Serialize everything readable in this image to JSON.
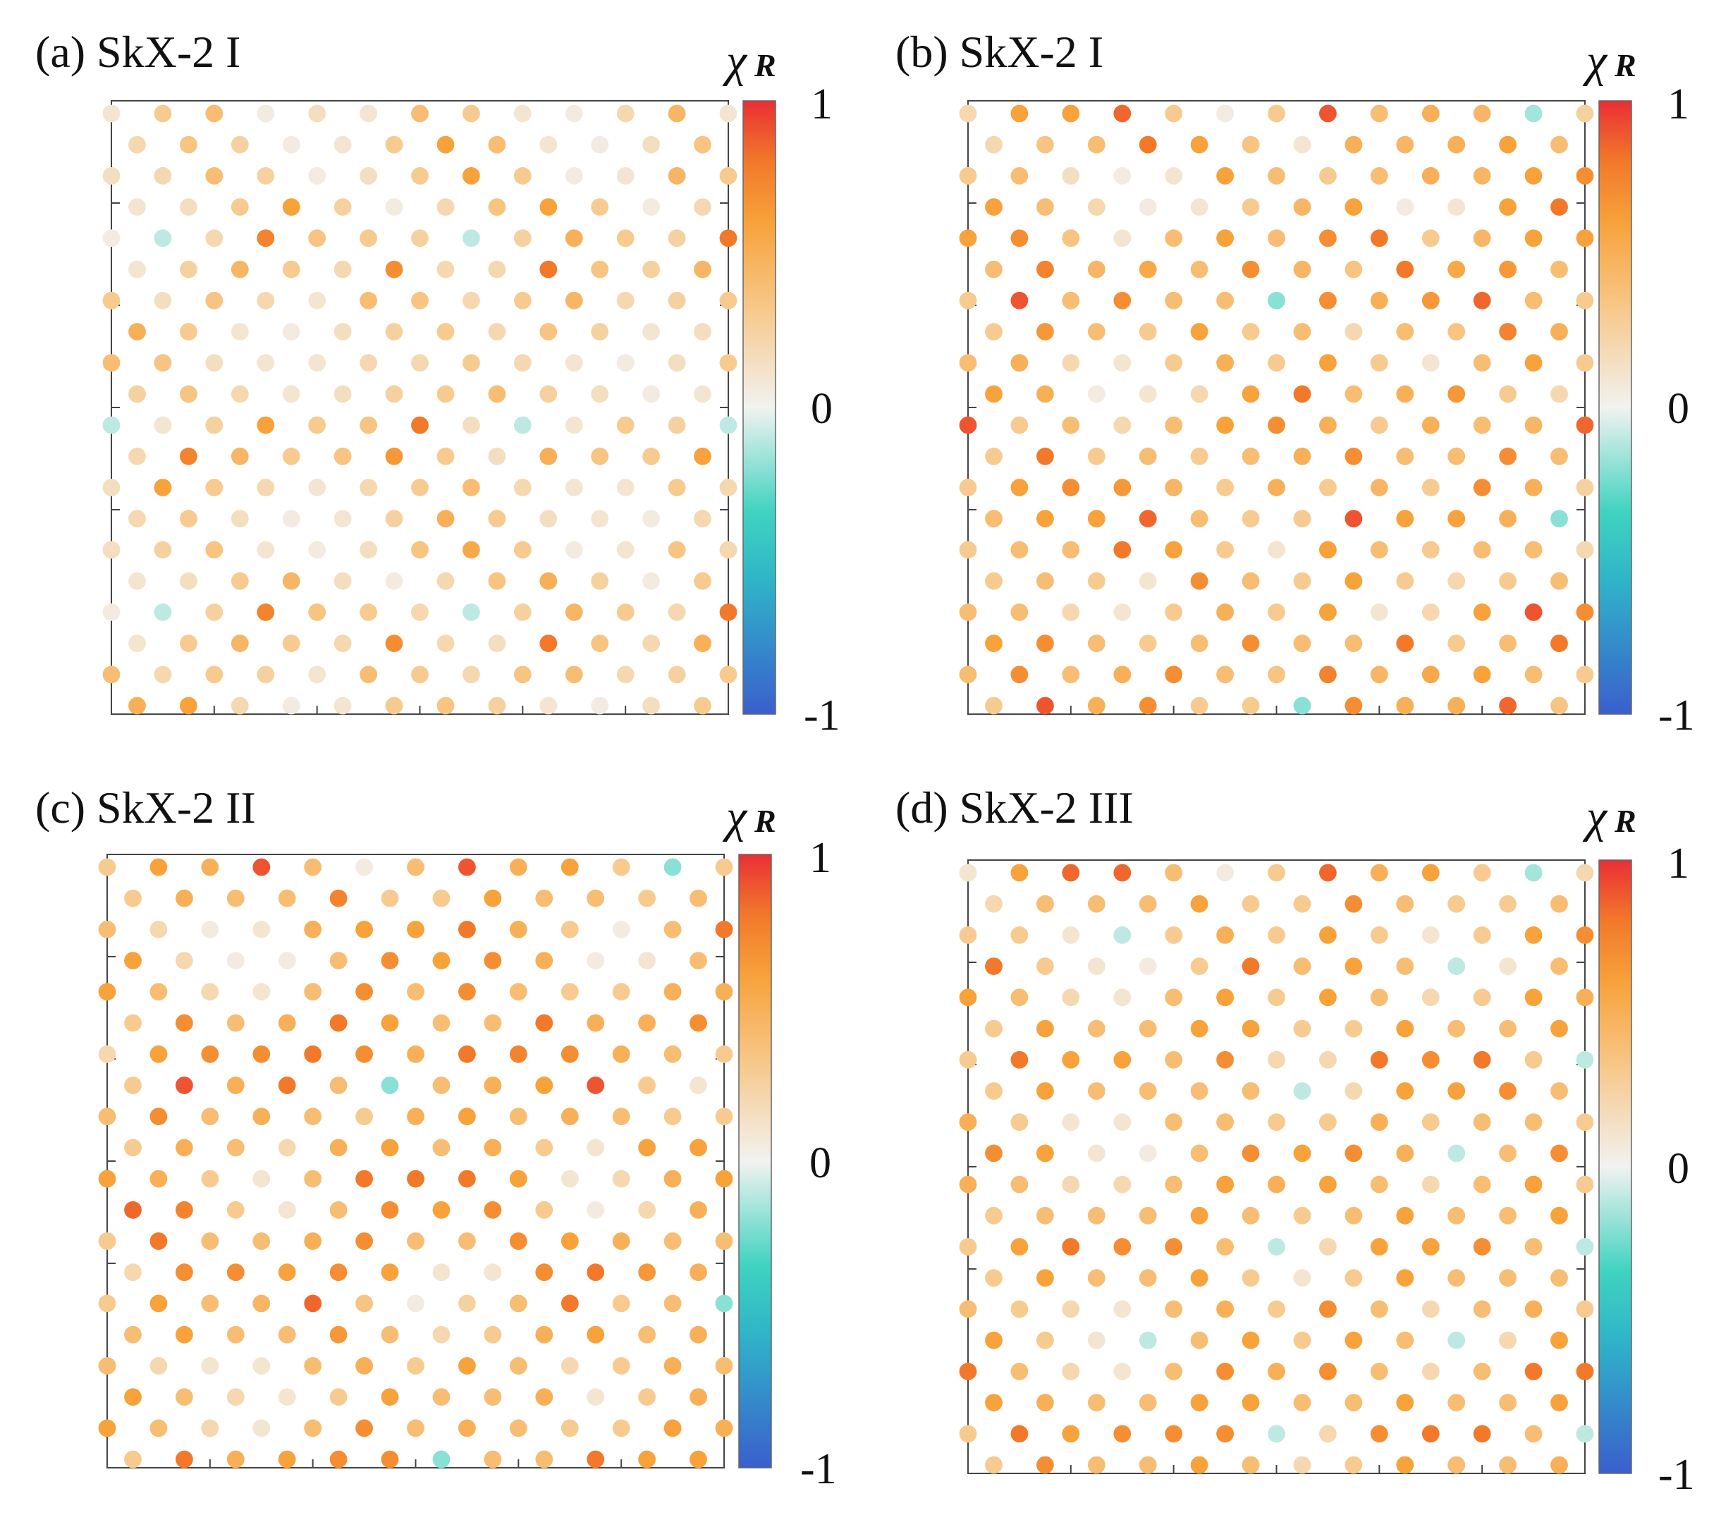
{
  "chart_data": [
    {
      "type": "scatter",
      "title": "(a) SkX-2 I",
      "colorbar": {
        "label": "χ",
        "label_sub": "R",
        "ticks": [
          "1",
          "0",
          "-1"
        ],
        "range": [
          -1,
          1
        ]
      },
      "grid": "13 columns x 20 rows, alternate rows offset by half a column",
      "rows": [
        [
          0.1,
          0.3,
          0.4,
          0.05,
          0.15,
          0.1,
          0.4,
          0.3,
          0.1,
          0.05,
          0.2,
          0.45,
          0.1
        ],
        [
          0.2,
          0.35,
          0.25,
          0.05,
          0.1,
          0.3,
          0.6,
          0.4,
          0.1,
          0.05,
          0.15,
          0.35,
          0.3
        ],
        [
          0.15,
          0.2,
          0.4,
          0.25,
          0.05,
          0.15,
          0.3,
          0.6,
          0.3,
          0.05,
          0.1,
          0.45,
          0.3
        ],
        [
          0.1,
          0.15,
          0.3,
          0.6,
          0.25,
          0.05,
          0.2,
          0.35,
          0.6,
          0.3,
          0.05,
          0.2,
          0.65
        ],
        [
          0.05,
          -0.1,
          0.2,
          0.75,
          0.35,
          0.3,
          0.25,
          -0.1,
          0.25,
          0.5,
          0.3,
          0.25,
          0.8
        ],
        [
          0.1,
          0.25,
          0.45,
          0.3,
          0.2,
          0.7,
          0.2,
          0.2,
          0.8,
          0.35,
          0.25,
          0.45,
          0.15
        ],
        [
          0.3,
          0.15,
          0.35,
          0.2,
          0.1,
          0.4,
          0.35,
          0.2,
          0.3,
          0.45,
          0.2,
          0.25,
          0.3
        ],
        [
          0.5,
          0.3,
          0.1,
          0.05,
          0.15,
          0.25,
          0.3,
          0.2,
          0.35,
          0.25,
          0.1,
          0.15,
          0.5
        ],
        [
          0.4,
          0.35,
          0.15,
          0.1,
          0.1,
          0.2,
          0.2,
          0.3,
          0.2,
          0.1,
          0.05,
          0.15,
          0.3
        ],
        [
          0.25,
          0.35,
          0.2,
          0.1,
          0.15,
          0.25,
          0.3,
          0.4,
          0.25,
          0.15,
          0.05,
          0.1,
          0.2
        ],
        [
          -0.1,
          0.1,
          0.25,
          0.6,
          0.3,
          0.35,
          0.8,
          0.15,
          -0.1,
          0.1,
          0.3,
          0.25,
          -0.1
        ],
        [
          0.2,
          0.75,
          0.45,
          0.3,
          0.35,
          0.65,
          0.3,
          0.15,
          0.5,
          0.35,
          0.3,
          0.6,
          0.2
        ],
        [
          0.15,
          0.6,
          0.3,
          0.2,
          0.1,
          0.2,
          0.3,
          0.4,
          0.2,
          0.1,
          0.1,
          0.3,
          0.2
        ],
        [
          0.2,
          0.3,
          0.15,
          0.05,
          0.1,
          0.25,
          0.5,
          0.3,
          0.15,
          0.1,
          0.05,
          0.2,
          0.25
        ],
        [
          0.15,
          0.25,
          0.35,
          0.1,
          0.05,
          0.15,
          0.35,
          0.55,
          0.3,
          0.05,
          0.1,
          0.35,
          0.2
        ],
        [
          0.1,
          0.15,
          0.3,
          0.45,
          0.15,
          0.05,
          0.2,
          0.35,
          0.5,
          0.25,
          0.05,
          0.3,
          0.5
        ],
        [
          0.05,
          -0.1,
          0.25,
          0.75,
          0.35,
          0.3,
          0.2,
          -0.1,
          0.25,
          0.45,
          0.3,
          0.2,
          0.8
        ],
        [
          0.1,
          0.3,
          0.45,
          0.3,
          0.2,
          0.7,
          0.2,
          0.15,
          0.8,
          0.35,
          0.2,
          0.5,
          0.15
        ],
        [
          0.4,
          0.2,
          0.3,
          0.25,
          0.1,
          0.4,
          0.3,
          0.2,
          0.35,
          0.4,
          0.2,
          0.25,
          0.3
        ],
        [
          0.5,
          0.6,
          0.2,
          0.05,
          0.1,
          0.3,
          0.35,
          0.25,
          0.1,
          0.05,
          0.15,
          0.3,
          0.45
        ]
      ]
    },
    {
      "type": "scatter",
      "title": "(b) SkX-2 I",
      "colorbar": {
        "label": "χ",
        "label_sub": "R",
        "ticks": [
          "1",
          "0",
          "-1"
        ],
        "range": [
          -1,
          1
        ]
      },
      "grid": "13 columns x 20 rows, alternate rows offset by half a column",
      "rows": [
        [
          0.2,
          0.6,
          0.6,
          0.85,
          0.3,
          0.05,
          0.3,
          0.9,
          0.4,
          0.5,
          0.45,
          -0.15,
          0.25
        ],
        [
          0.2,
          0.35,
          0.4,
          0.8,
          0.6,
          0.35,
          0.1,
          0.5,
          0.45,
          0.5,
          0.6,
          0.4,
          0.3
        ],
        [
          0.3,
          0.4,
          0.15,
          0.05,
          0.1,
          0.6,
          0.4,
          0.3,
          0.4,
          0.5,
          0.45,
          0.6,
          0.7
        ],
        [
          0.6,
          0.4,
          0.2,
          0.05,
          0.1,
          0.3,
          0.45,
          0.6,
          0.05,
          0.1,
          0.6,
          0.8,
          0.65
        ],
        [
          0.6,
          0.7,
          0.35,
          0.1,
          0.4,
          0.6,
          0.4,
          0.7,
          0.8,
          0.3,
          0.45,
          0.6,
          0.6
        ],
        [
          0.4,
          0.75,
          0.45,
          0.55,
          0.4,
          0.7,
          0.45,
          0.35,
          0.8,
          0.55,
          0.65,
          0.4,
          0.3
        ],
        [
          0.3,
          0.9,
          0.4,
          0.7,
          0.4,
          0.4,
          -0.2,
          0.7,
          0.5,
          0.65,
          0.85,
          0.4,
          0.3
        ],
        [
          0.3,
          0.65,
          0.4,
          0.3,
          0.6,
          0.3,
          0.4,
          0.2,
          0.4,
          0.35,
          0.75,
          0.5,
          0.3
        ],
        [
          0.4,
          0.5,
          0.2,
          0.1,
          0.3,
          0.5,
          0.3,
          0.6,
          0.3,
          0.1,
          0.4,
          0.6,
          0.3
        ],
        [
          0.6,
          0.5,
          0.05,
          0.1,
          0.2,
          0.6,
          0.8,
          0.4,
          0.5,
          0.65,
          0.3,
          0.2,
          0.6
        ],
        [
          0.9,
          0.3,
          0.4,
          0.2,
          0.4,
          0.6,
          0.7,
          0.5,
          0.3,
          0.5,
          0.4,
          0.45,
          0.85
        ],
        [
          0.3,
          0.8,
          0.3,
          0.4,
          0.3,
          0.4,
          0.5,
          0.7,
          0.4,
          0.4,
          0.7,
          0.4,
          0.2
        ],
        [
          0.3,
          0.6,
          0.7,
          0.65,
          0.45,
          0.3,
          0.5,
          0.3,
          0.45,
          0.3,
          0.7,
          0.5,
          0.25
        ],
        [
          0.4,
          0.6,
          0.6,
          0.85,
          0.4,
          0.3,
          0.3,
          0.9,
          0.6,
          0.6,
          0.5,
          -0.2,
          0.3
        ],
        [
          0.3,
          0.4,
          0.4,
          0.8,
          0.6,
          0.3,
          0.1,
          0.6,
          0.4,
          0.3,
          0.4,
          0.4,
          0.2
        ],
        [
          0.3,
          0.4,
          0.3,
          0.1,
          0.7,
          0.4,
          0.3,
          0.6,
          0.3,
          0.2,
          0.3,
          0.4,
          0.3
        ],
        [
          0.4,
          0.4,
          0.2,
          0.1,
          0.3,
          0.5,
          0.3,
          0.6,
          0.1,
          0.2,
          0.6,
          0.9,
          0.7
        ],
        [
          0.6,
          0.7,
          0.4,
          0.3,
          0.4,
          0.7,
          0.4,
          0.4,
          0.8,
          0.3,
          0.4,
          0.8,
          0.6
        ],
        [
          0.4,
          0.7,
          0.4,
          0.5,
          0.7,
          0.4,
          0.35,
          0.75,
          0.45,
          0.55,
          0.6,
          0.4,
          0.3
        ],
        [
          0.3,
          0.9,
          0.5,
          0.7,
          0.3,
          0.3,
          -0.2,
          0.7,
          0.5,
          0.5,
          0.85,
          0.35,
          0.3
        ]
      ]
    },
    {
      "type": "scatter",
      "title": "(c) SkX-2 II",
      "colorbar": {
        "label": "χ",
        "label_sub": "R",
        "ticks": [
          "1",
          "0",
          "-1"
        ],
        "range": [
          -1,
          1
        ]
      },
      "grid": "13 columns x 20 rows, alternate rows offset by half a column",
      "rows": [
        [
          0.3,
          0.6,
          0.5,
          0.9,
          0.4,
          0.05,
          0.4,
          0.9,
          0.5,
          0.6,
          0.3,
          -0.2,
          0.3
        ],
        [
          0.3,
          0.5,
          0.4,
          0.4,
          0.75,
          0.3,
          0.3,
          0.6,
          0.4,
          0.4,
          0.3,
          0.4,
          0.3
        ],
        [
          0.4,
          0.2,
          0.05,
          0.1,
          0.5,
          0.6,
          0.6,
          0.8,
          0.5,
          0.3,
          0.05,
          0.4,
          0.8
        ],
        [
          0.6,
          0.2,
          0.05,
          0.05,
          0.4,
          0.7,
          0.6,
          0.7,
          0.5,
          0.05,
          0.1,
          0.4,
          0.85
        ],
        [
          0.6,
          0.4,
          0.2,
          0.1,
          0.4,
          0.7,
          0.4,
          0.7,
          0.4,
          0.3,
          0.3,
          0.5,
          0.5
        ],
        [
          0.3,
          0.7,
          0.4,
          0.5,
          0.8,
          0.6,
          0.4,
          0.4,
          0.8,
          0.5,
          0.5,
          0.7,
          0.3
        ],
        [
          0.2,
          0.6,
          0.7,
          0.7,
          0.8,
          0.7,
          0.5,
          0.8,
          0.75,
          0.7,
          0.5,
          0.4,
          0.3
        ],
        [
          0.3,
          0.9,
          0.5,
          0.8,
          0.4,
          -0.2,
          0.4,
          0.5,
          0.6,
          0.9,
          0.3,
          0.1,
          0.4
        ],
        [
          0.4,
          0.7,
          0.4,
          0.5,
          0.4,
          0.3,
          0.5,
          0.6,
          0.4,
          0.5,
          0.4,
          0.3,
          0.3
        ],
        [
          0.3,
          0.5,
          0.4,
          0.2,
          0.5,
          0.6,
          0.4,
          0.5,
          0.3,
          0.1,
          0.6,
          0.6,
          0.4
        ],
        [
          0.6,
          0.5,
          0.3,
          0.1,
          0.4,
          0.8,
          0.8,
          0.8,
          0.6,
          0.1,
          0.2,
          0.5,
          0.6
        ],
        [
          0.85,
          0.75,
          0.3,
          0.1,
          0.4,
          0.7,
          0.6,
          0.7,
          0.3,
          0.05,
          0.2,
          0.5,
          0.85
        ],
        [
          0.3,
          0.8,
          0.4,
          0.4,
          0.5,
          0.7,
          0.4,
          0.4,
          0.7,
          0.6,
          0.5,
          0.4,
          0.4
        ],
        [
          0.2,
          0.7,
          0.7,
          0.6,
          0.7,
          0.6,
          0.1,
          0.1,
          0.7,
          0.8,
          0.65,
          0.5,
          0.3
        ],
        [
          0.3,
          0.6,
          0.4,
          0.45,
          0.85,
          0.35,
          0.05,
          0.25,
          0.4,
          0.8,
          0.3,
          0.4,
          -0.2
        ],
        [
          0.4,
          0.6,
          0.4,
          0.4,
          0.65,
          0.4,
          0.2,
          0.3,
          0.5,
          0.6,
          0.4,
          0.5,
          0.3
        ],
        [
          0.4,
          0.2,
          0.1,
          0.1,
          0.4,
          0.5,
          0.3,
          0.6,
          0.4,
          0.2,
          0.3,
          0.5,
          0.4
        ],
        [
          0.6,
          0.4,
          0.2,
          0.1,
          0.3,
          0.6,
          0.4,
          0.4,
          0.5,
          0.1,
          0.3,
          0.5,
          0.8
        ],
        [
          0.6,
          0.4,
          0.2,
          0.1,
          0.4,
          0.7,
          0.4,
          0.5,
          0.4,
          0.3,
          0.3,
          0.6,
          0.5
        ],
        [
          0.3,
          0.8,
          0.5,
          0.6,
          0.7,
          0.7,
          -0.2,
          0.4,
          0.4,
          0.8,
          0.6,
          0.6,
          0.4
        ]
      ]
    },
    {
      "type": "scatter",
      "title": "(d) SkX-2 III",
      "colorbar": {
        "label": "χ",
        "label_sub": "R",
        "ticks": [
          "1",
          "0",
          "-1"
        ],
        "range": [
          -1,
          1
        ]
      },
      "grid": "13 columns x 20 rows, alternate rows offset by half a column",
      "rows": [
        [
          0.1,
          0.6,
          0.85,
          0.85,
          0.4,
          0.05,
          0.3,
          0.85,
          0.5,
          0.6,
          0.3,
          -0.15,
          0.2
        ],
        [
          0.2,
          0.4,
          0.4,
          0.4,
          0.6,
          0.3,
          0.3,
          0.7,
          0.4,
          0.3,
          0.3,
          0.4,
          0.3
        ],
        [
          0.3,
          0.3,
          0.1,
          -0.1,
          0.3,
          0.5,
          0.3,
          0.6,
          0.3,
          0.1,
          0.3,
          0.6,
          0.7
        ],
        [
          0.8,
          0.3,
          0.1,
          0.05,
          0.3,
          0.8,
          0.4,
          0.6,
          0.4,
          -0.1,
          0.1,
          0.4,
          0.8
        ],
        [
          0.6,
          0.4,
          0.2,
          0.1,
          0.4,
          0.6,
          0.3,
          0.6,
          0.4,
          0.2,
          0.3,
          0.6,
          0.5
        ],
        [
          0.3,
          0.6,
          0.4,
          0.4,
          0.6,
          0.6,
          0.3,
          0.3,
          0.6,
          0.4,
          0.4,
          0.6,
          0.3
        ],
        [
          0.3,
          0.8,
          0.6,
          0.6,
          0.4,
          0.7,
          0.2,
          0.2,
          0.8,
          0.7,
          0.8,
          0.3,
          -0.1
        ],
        [
          0.3,
          0.6,
          0.4,
          0.4,
          0.4,
          0.4,
          -0.1,
          0.2,
          0.6,
          0.6,
          0.7,
          0.4,
          0.3
        ],
        [
          0.5,
          0.3,
          0.1,
          0.1,
          0.4,
          0.4,
          0.3,
          0.3,
          0.5,
          0.3,
          0.4,
          0.4,
          0.3
        ],
        [
          0.7,
          0.6,
          0.1,
          0.05,
          0.4,
          0.7,
          0.6,
          0.7,
          0.5,
          -0.1,
          0.4,
          0.7,
          0.5
        ],
        [
          0.5,
          0.4,
          0.2,
          0.2,
          0.4,
          0.6,
          0.5,
          0.6,
          0.4,
          0.2,
          0.4,
          0.6,
          0.3
        ],
        [
          0.3,
          0.4,
          0.4,
          0.4,
          0.6,
          0.4,
          0.3,
          0.4,
          0.6,
          0.4,
          0.4,
          0.6,
          0.2
        ],
        [
          0.3,
          0.6,
          0.8,
          0.7,
          0.7,
          0.4,
          -0.1,
          0.2,
          0.6,
          0.6,
          0.7,
          0.4,
          -0.1
        ],
        [
          0.3,
          0.6,
          0.4,
          0.4,
          0.6,
          0.3,
          0.1,
          0.3,
          0.6,
          0.4,
          0.4,
          0.4,
          0.3
        ],
        [
          0.4,
          0.3,
          0.2,
          0.1,
          0.4,
          0.5,
          0.3,
          0.7,
          0.4,
          0.2,
          0.4,
          0.5,
          0.3
        ],
        [
          0.6,
          0.3,
          0.1,
          -0.1,
          0.4,
          0.6,
          0.3,
          0.6,
          0.4,
          -0.1,
          0.2,
          0.6,
          0.4
        ],
        [
          0.8,
          0.4,
          0.2,
          0.1,
          0.4,
          0.7,
          0.5,
          0.7,
          0.4,
          0.2,
          0.4,
          0.8,
          0.8
        ],
        [
          0.6,
          0.5,
          0.4,
          0.4,
          0.6,
          0.6,
          0.4,
          0.4,
          0.6,
          0.4,
          0.4,
          0.6,
          0.3
        ],
        [
          0.3,
          0.8,
          0.6,
          0.7,
          0.7,
          0.7,
          -0.1,
          0.2,
          0.7,
          0.8,
          0.8,
          0.4,
          -0.1
        ],
        [
          0.3,
          0.7,
          0.4,
          0.4,
          0.6,
          0.4,
          0.2,
          0.3,
          0.6,
          0.4,
          0.4,
          0.5,
          0.3
        ]
      ]
    }
  ]
}
